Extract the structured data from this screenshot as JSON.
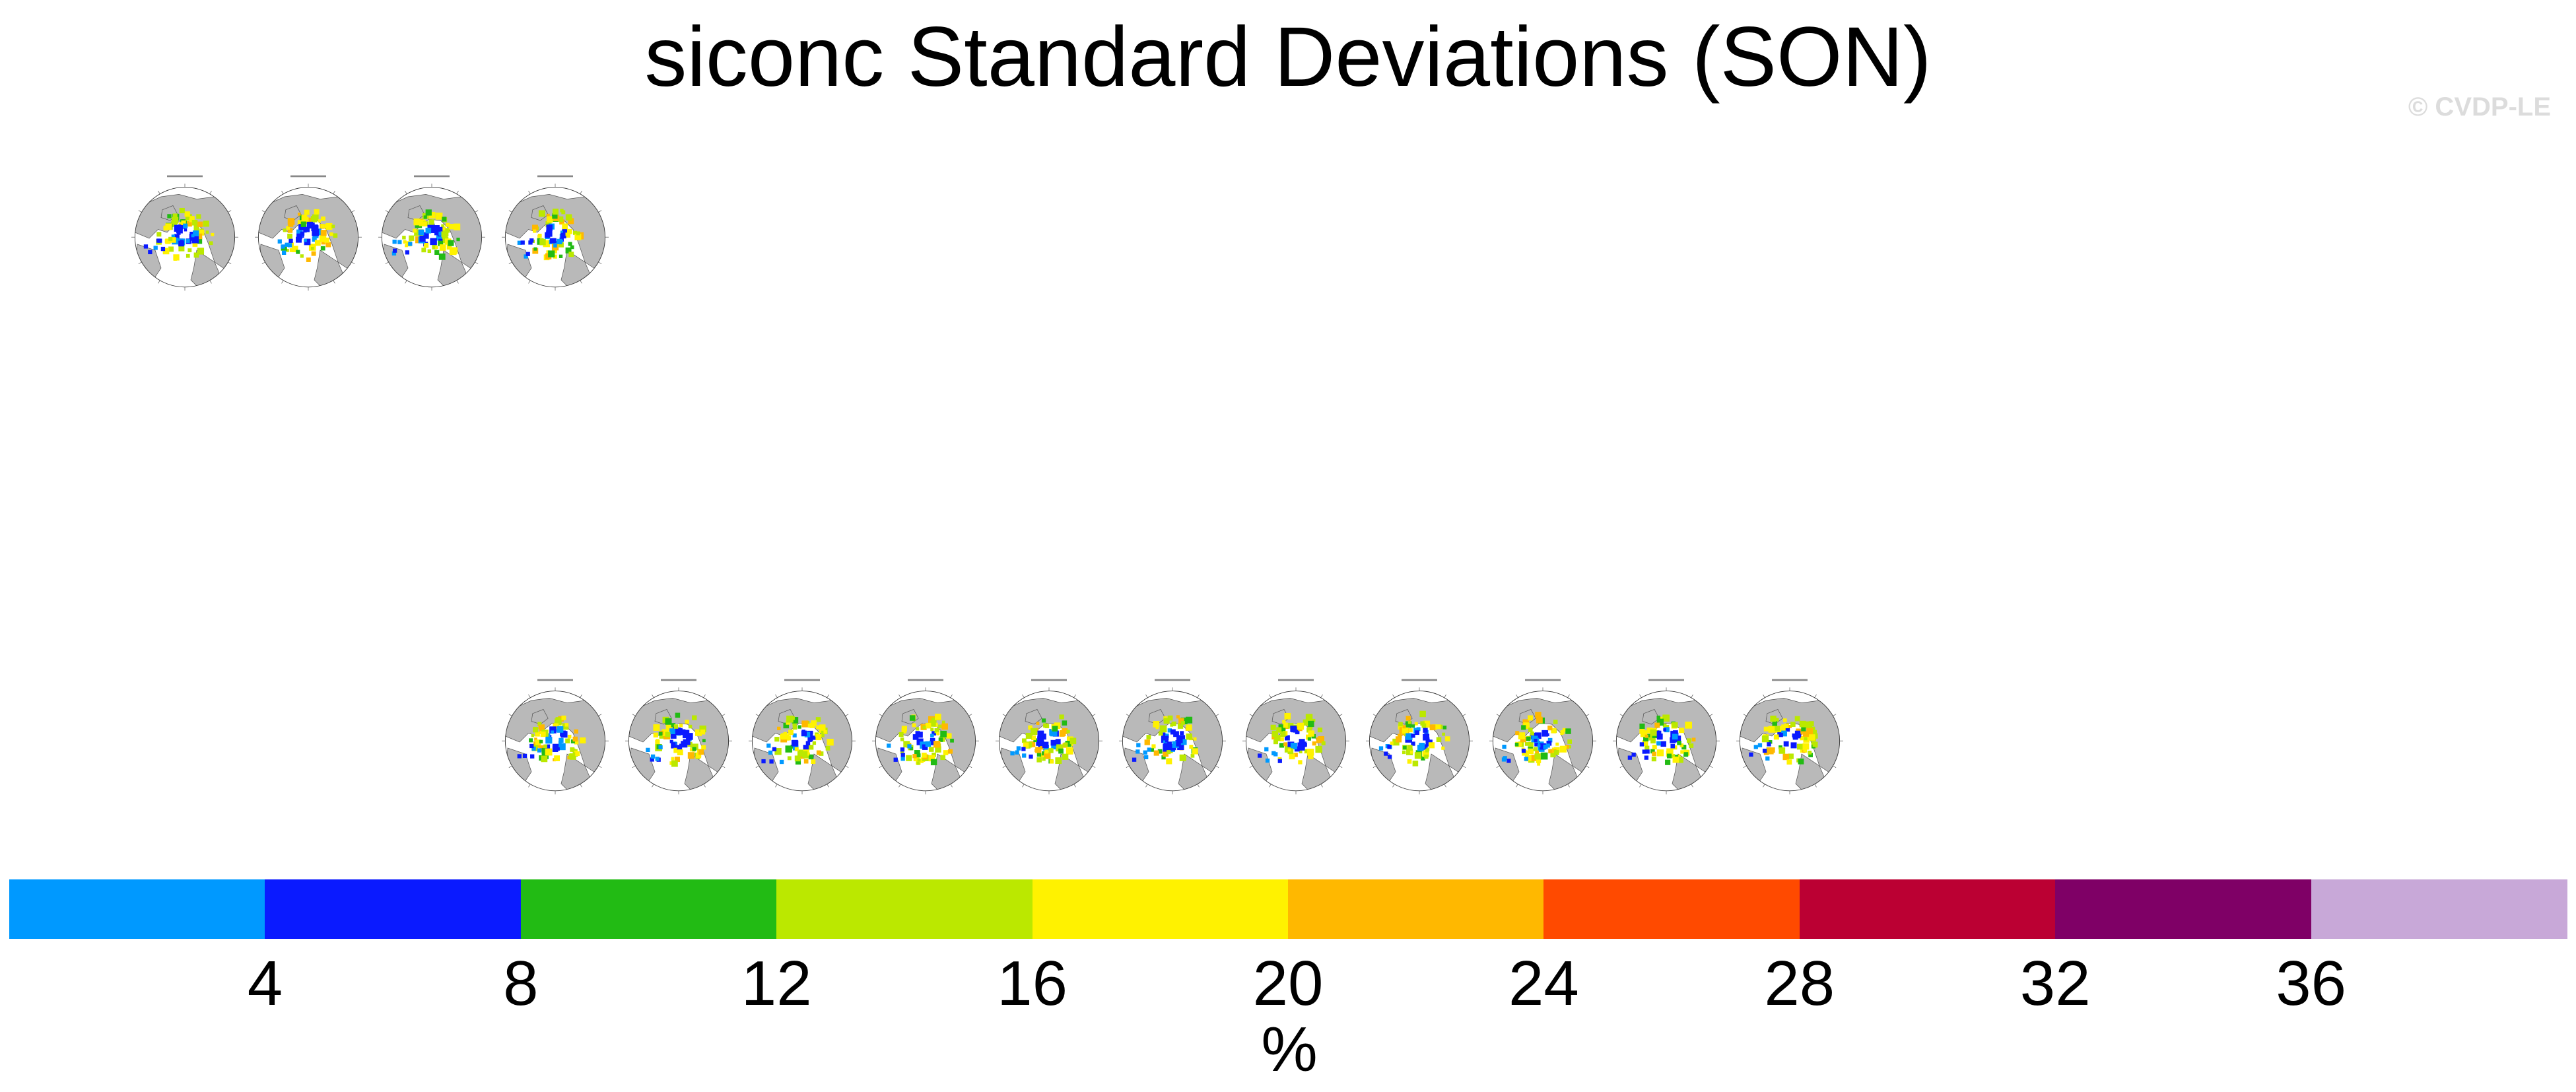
{
  "title": "siconc Standard Deviations (SON)",
  "credit": "© CVDP-LE",
  "chart_data": {
    "type": "heatmap",
    "title": "siconc Standard Deviations (SON)",
    "description_panels": {
      "row1_count": 4,
      "row2_count": 11
    },
    "colorbar": {
      "unit": "%",
      "ticks": [
        4,
        8,
        12,
        16,
        20,
        24,
        28,
        32,
        36
      ],
      "range": [
        0,
        40
      ],
      "colors": [
        "#0099ff",
        "#0a1aff",
        "#22bb14",
        "#bbe800",
        "#fff200",
        "#ffb800",
        "#ff4a00",
        "#bb0033",
        "#7f0066",
        "#c8a8d8"
      ]
    }
  },
  "colors": {
    "land": "#b9b9b9",
    "ocean": "#ffffff",
    "coast": "#555555"
  }
}
